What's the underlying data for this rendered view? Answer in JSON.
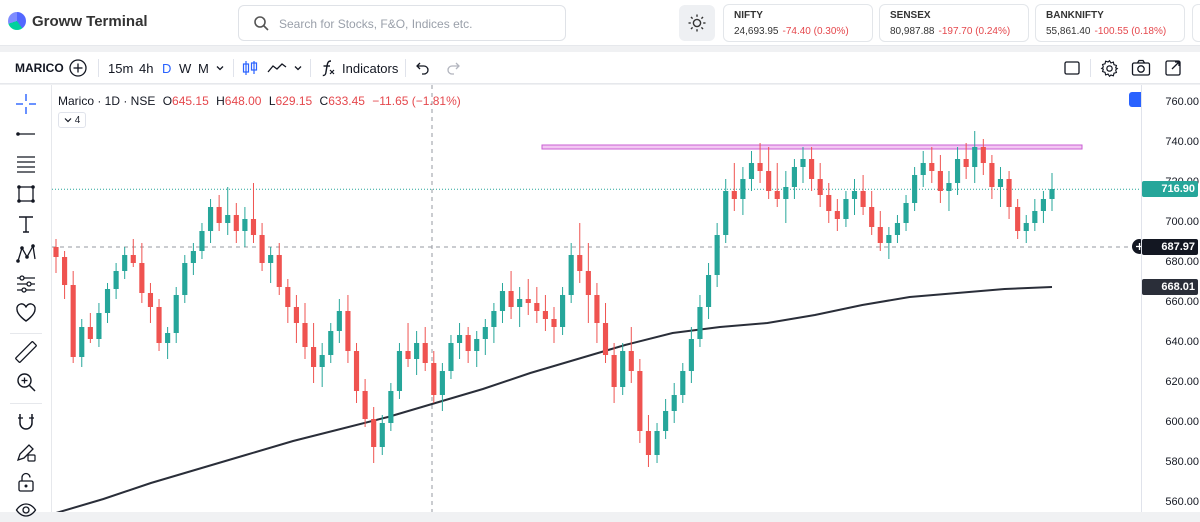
{
  "app": {
    "title": "Groww Terminal"
  },
  "search": {
    "placeholder": "Search for Stocks, F&O, Indices etc."
  },
  "indices": [
    {
      "name": "NIFTY",
      "value": "24,693.95",
      "change": "-74.40 (0.30%)"
    },
    {
      "name": "SENSEX",
      "value": "80,987.88",
      "change": "-197.70 (0.24%)"
    },
    {
      "name": "BANKNIFTY",
      "value": "55,861.40",
      "change": "-100.55 (0.18%)"
    }
  ],
  "toolbar": {
    "symbol": "MARICO",
    "intervals": [
      "15m",
      "4h",
      "D",
      "W",
      "M"
    ],
    "active_interval": "D",
    "indicators_label": "Indicators"
  },
  "legend": {
    "title": "Marico · 1D · NSE",
    "o_label": "O",
    "o": "645.15",
    "h_label": "H",
    "h": "648.00",
    "l_label": "L",
    "l": "629.15",
    "c_label": "C",
    "c": "633.45",
    "change": "−11.65 (−1.81%)",
    "indicator_count": "4"
  },
  "axis": {
    "ticks": [
      "760.00",
      "740.00",
      "720.00",
      "700.00",
      "680.00",
      "660.00",
      "640.00",
      "620.00",
      "600.00",
      "580.00",
      "560.00"
    ],
    "last_price": "716.90",
    "crosshair_price": "687.97",
    "ma_price": "668.01"
  },
  "colors": {
    "up": "#26a69a",
    "down": "#ef5350",
    "zone_fill": "#f3c7f3",
    "zone_border": "#c85fd3",
    "ma": "#2a2e39",
    "accent": "#2962ff"
  },
  "chart_data": {
    "type": "candlestick",
    "symbol": "Marico",
    "interval": "1D",
    "exchange": "NSE",
    "ylim": [
      555,
      770
    ],
    "resistance_zone": [
      737,
      739
    ],
    "last_close": 716.9,
    "crosshair_price": 687.97,
    "moving_average_last": 668.01,
    "moving_average": [
      555,
      562,
      570,
      577,
      584,
      591,
      597,
      603,
      610,
      617,
      625,
      632,
      639,
      645,
      648,
      650,
      654,
      659,
      663,
      665,
      667,
      668
    ],
    "candles": [
      [
        688,
        692,
        675,
        683
      ],
      [
        683,
        686,
        662,
        669
      ],
      [
        669,
        676,
        630,
        633
      ],
      [
        633,
        652,
        628,
        648
      ],
      [
        648,
        655,
        640,
        642
      ],
      [
        642,
        660,
        638,
        655
      ],
      [
        655,
        670,
        650,
        667
      ],
      [
        667,
        680,
        662,
        676
      ],
      [
        676,
        688,
        672,
        684
      ],
      [
        684,
        692,
        678,
        680
      ],
      [
        680,
        690,
        660,
        665
      ],
      [
        665,
        670,
        650,
        658
      ],
      [
        658,
        662,
        636,
        640
      ],
      [
        640,
        648,
        632,
        645
      ],
      [
        645,
        668,
        640,
        664
      ],
      [
        664,
        684,
        660,
        680
      ],
      [
        680,
        690,
        674,
        686
      ],
      [
        686,
        700,
        682,
        696
      ],
      [
        696,
        712,
        690,
        708
      ],
      [
        708,
        714,
        696,
        700
      ],
      [
        700,
        718,
        694,
        704
      ],
      [
        704,
        710,
        690,
        696
      ],
      [
        696,
        708,
        688,
        702
      ],
      [
        702,
        720,
        690,
        694
      ],
      [
        694,
        700,
        676,
        680
      ],
      [
        680,
        688,
        670,
        684
      ],
      [
        684,
        690,
        664,
        668
      ],
      [
        668,
        672,
        650,
        658
      ],
      [
        658,
        664,
        640,
        650
      ],
      [
        650,
        660,
        632,
        638
      ],
      [
        638,
        650,
        620,
        628
      ],
      [
        628,
        640,
        618,
        634
      ],
      [
        634,
        650,
        630,
        646
      ],
      [
        646,
        662,
        640,
        656
      ],
      [
        656,
        664,
        630,
        636
      ],
      [
        636,
        640,
        610,
        616
      ],
      [
        616,
        622,
        598,
        602
      ],
      [
        602,
        608,
        580,
        588
      ],
      [
        588,
        604,
        584,
        600
      ],
      [
        600,
        620,
        596,
        616
      ],
      [
        616,
        640,
        612,
        636
      ],
      [
        636,
        650,
        628,
        632
      ],
      [
        632,
        646,
        624,
        640
      ],
      [
        640,
        648,
        626,
        630
      ],
      [
        630,
        636,
        610,
        614
      ],
      [
        614,
        630,
        606,
        626
      ],
      [
        626,
        644,
        622,
        640
      ],
      [
        640,
        650,
        632,
        644
      ],
      [
        644,
        648,
        630,
        636
      ],
      [
        636,
        646,
        628,
        642
      ],
      [
        642,
        652,
        634,
        648
      ],
      [
        648,
        660,
        640,
        656
      ],
      [
        656,
        670,
        650,
        666
      ],
      [
        666,
        676,
        652,
        658
      ],
      [
        658,
        668,
        648,
        662
      ],
      [
        662,
        672,
        654,
        660
      ],
      [
        660,
        668,
        650,
        656
      ],
      [
        656,
        664,
        646,
        652
      ],
      [
        652,
        658,
        640,
        648
      ],
      [
        648,
        668,
        644,
        664
      ],
      [
        664,
        690,
        660,
        684
      ],
      [
        684,
        700,
        670,
        676
      ],
      [
        676,
        690,
        650,
        664
      ],
      [
        664,
        670,
        640,
        650
      ],
      [
        650,
        660,
        630,
        634
      ],
      [
        634,
        640,
        610,
        618
      ],
      [
        618,
        640,
        614,
        636
      ],
      [
        636,
        648,
        620,
        626
      ],
      [
        626,
        632,
        590,
        596
      ],
      [
        596,
        604,
        578,
        584
      ],
      [
        584,
        600,
        580,
        596
      ],
      [
        596,
        612,
        592,
        606
      ],
      [
        606,
        620,
        600,
        614
      ],
      [
        614,
        630,
        610,
        626
      ],
      [
        626,
        648,
        620,
        642
      ],
      [
        642,
        664,
        638,
        658
      ],
      [
        658,
        680,
        652,
        674
      ],
      [
        674,
        700,
        668,
        694
      ],
      [
        694,
        722,
        690,
        716
      ],
      [
        716,
        730,
        706,
        712
      ],
      [
        712,
        728,
        704,
        722
      ],
      [
        722,
        736,
        716,
        730
      ],
      [
        730,
        740,
        720,
        726
      ],
      [
        726,
        738,
        712,
        716
      ],
      [
        716,
        730,
        708,
        712
      ],
      [
        712,
        726,
        700,
        718
      ],
      [
        718,
        732,
        712,
        728
      ],
      [
        728,
        738,
        720,
        732
      ],
      [
        732,
        738,
        716,
        722
      ],
      [
        722,
        730,
        708,
        714
      ],
      [
        714,
        720,
        700,
        706
      ],
      [
        706,
        712,
        696,
        702
      ],
      [
        702,
        716,
        698,
        712
      ],
      [
        712,
        722,
        704,
        716
      ],
      [
        716,
        724,
        704,
        708
      ],
      [
        708,
        716,
        694,
        698
      ],
      [
        698,
        706,
        686,
        690
      ],
      [
        690,
        698,
        682,
        694
      ],
      [
        694,
        704,
        690,
        700
      ],
      [
        700,
        714,
        696,
        710
      ],
      [
        710,
        728,
        706,
        724
      ],
      [
        724,
        736,
        718,
        730
      ],
      [
        730,
        738,
        720,
        726
      ],
      [
        726,
        734,
        710,
        716
      ],
      [
        716,
        726,
        706,
        720
      ],
      [
        720,
        738,
        714,
        732
      ],
      [
        732,
        740,
        722,
        728
      ],
      [
        728,
        746,
        720,
        738
      ],
      [
        738,
        742,
        724,
        730
      ],
      [
        730,
        734,
        712,
        718
      ],
      [
        718,
        728,
        708,
        722
      ],
      [
        722,
        726,
        702,
        708
      ],
      [
        708,
        712,
        692,
        696
      ],
      [
        696,
        704,
        690,
        700
      ],
      [
        700,
        712,
        696,
        706
      ],
      [
        706,
        716,
        700,
        712
      ],
      [
        712,
        725,
        706,
        717
      ]
    ]
  }
}
